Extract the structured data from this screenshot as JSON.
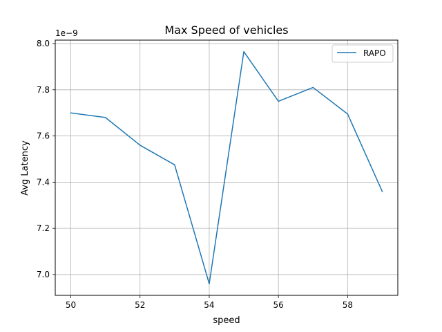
{
  "chart_data": {
    "type": "line",
    "title": "Max Speed of vehicles",
    "xlabel": "speed",
    "ylabel": "Avg Latency",
    "y_offset_label": "1e−9",
    "x": [
      50,
      51,
      52,
      53,
      54,
      55,
      56,
      57,
      58,
      59
    ],
    "series": [
      {
        "name": "RAPO",
        "color": "#1f77b4",
        "values": [
          7.7,
          7.68,
          7.56,
          7.475,
          6.96,
          7.965,
          7.75,
          7.81,
          7.695,
          7.36
        ]
      }
    ],
    "xlim": [
      49.55,
      59.45
    ],
    "ylim": [
      6.91,
      8.015
    ],
    "xticks": [
      50,
      52,
      54,
      56,
      58
    ],
    "xtick_labels": [
      "50",
      "52",
      "54",
      "56",
      "58"
    ],
    "yticks": [
      7.0,
      7.2,
      7.4,
      7.6,
      7.8,
      8.0
    ],
    "ytick_labels": [
      "7.0",
      "7.2",
      "7.4",
      "7.6",
      "7.8",
      "8.0"
    ],
    "grid": true,
    "legend_position": "upper-right"
  }
}
